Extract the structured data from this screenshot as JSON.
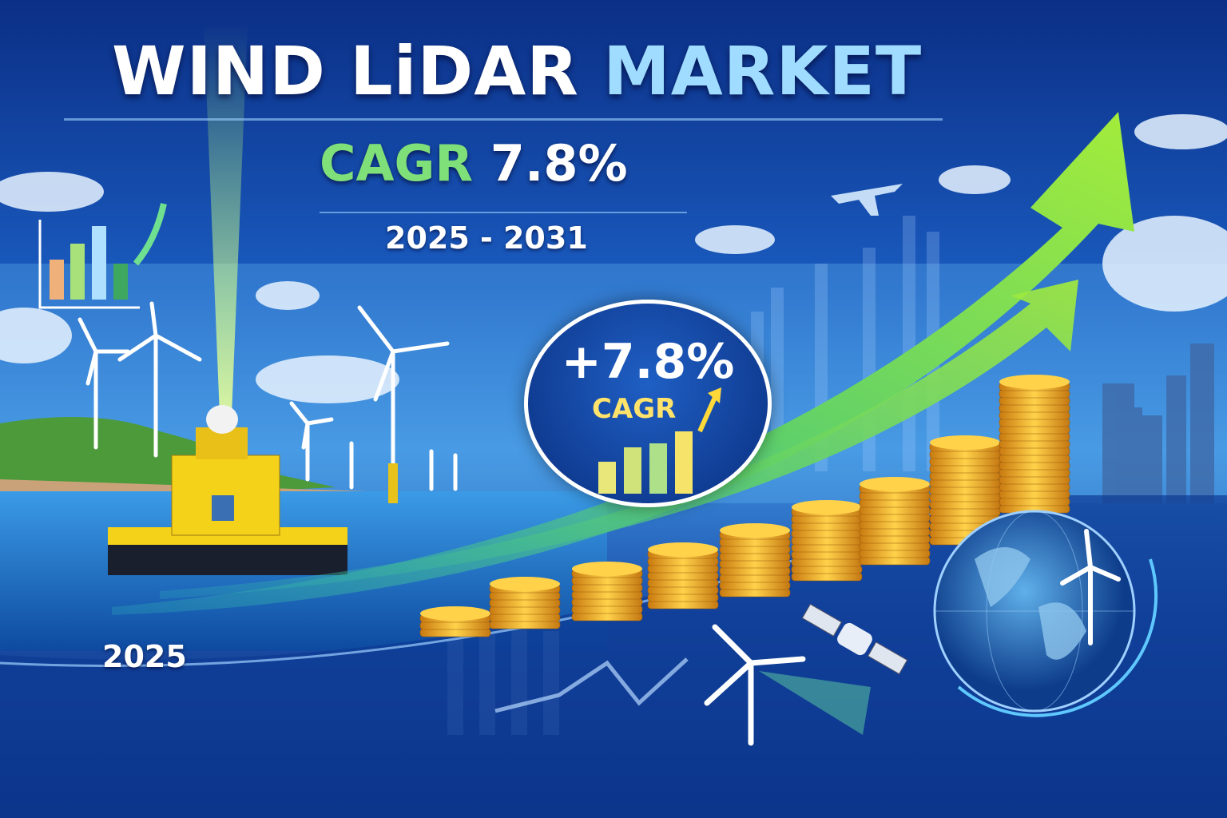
{
  "title": {
    "part1": "WIND LiDAR",
    "part2": "MARKET"
  },
  "growth": {
    "label": "CAGR",
    "value": "7.8%",
    "period": "2025 - 2031"
  },
  "badge": {
    "value": "+7.8%",
    "label": "CAGR"
  },
  "start_year": "2025",
  "colors": {
    "background": "#1a5bbf",
    "title_accent": "#9fdcff",
    "cagr_green": "#7fe07a",
    "arrow_green": "#8be03a",
    "coin_gold": "#f0a92a",
    "badge_yellow": "#ffe36a",
    "buoy_yellow": "#f5d21a"
  },
  "icons": [
    "bar-chart-up-icon",
    "wind-turbine-icon",
    "lidar-buoy-icon",
    "airplane-icon",
    "satellite-icon",
    "globe-icon",
    "growth-arrow-icon",
    "coin-stack-icon",
    "cloud-icon",
    "city-skyline-icon"
  ]
}
